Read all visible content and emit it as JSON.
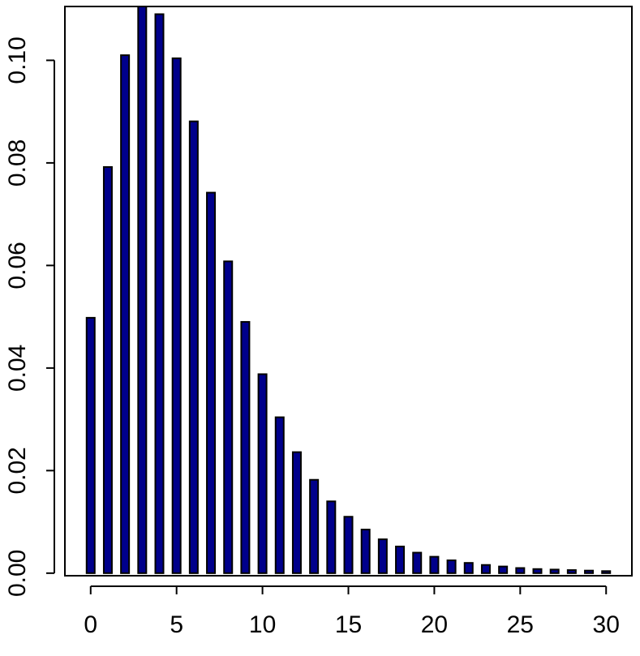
{
  "chart_data": {
    "type": "bar",
    "title": "",
    "xlabel": "",
    "ylabel": "",
    "bar_color": "#00008B",
    "border_color": "#000000",
    "xlim": [
      -1.5,
      31.5
    ],
    "ylim": [
      -0.0005,
      0.1105
    ],
    "grid": false,
    "legend": "none",
    "x": [
      0,
      1,
      2,
      3,
      4,
      5,
      6,
      7,
      8,
      9,
      10,
      11,
      12,
      13,
      14,
      15,
      16,
      17,
      18,
      19,
      20,
      21,
      22,
      23,
      24,
      25,
      26,
      27,
      28,
      29,
      30
    ],
    "values": [
      0.0498,
      0.0792,
      0.101,
      0.1105,
      0.109,
      0.1004,
      0.0881,
      0.0742,
      0.0608,
      0.049,
      0.0388,
      0.0304,
      0.0236,
      0.0182,
      0.014,
      0.011,
      0.0085,
      0.0066,
      0.0052,
      0.004,
      0.0032,
      0.0025,
      0.002,
      0.0016,
      0.0013,
      0.001,
      0.0008,
      0.0007,
      0.0006,
      0.0005,
      0.0004
    ],
    "x_ticks": [
      0,
      5,
      10,
      15,
      20,
      25,
      30
    ],
    "x_tick_labels": [
      "0",
      "5",
      "10",
      "15",
      "20",
      "25",
      "30"
    ],
    "y_ticks": [
      0,
      0.02,
      0.04,
      0.06,
      0.08,
      0.1
    ],
    "y_tick_labels": [
      "0.00",
      "0.02",
      "0.04",
      "0.06",
      "0.08",
      "0.10"
    ]
  }
}
